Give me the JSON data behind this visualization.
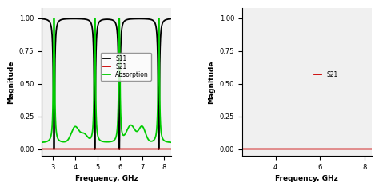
{
  "left_xlim": [
    2.5,
    8.3
  ],
  "left_ylim": [
    -0.05,
    1.08
  ],
  "right_xlim": [
    2.5,
    8.3
  ],
  "right_ylim": [
    -0.05,
    1.08
  ],
  "xlabel": "Frequency, GHz",
  "ylabel": "Magnitude",
  "left_xticks": [
    3,
    4,
    5,
    6,
    7,
    8
  ],
  "left_yticks": [
    0.0,
    0.25,
    0.5,
    0.75,
    1.0
  ],
  "right_xticks": [
    4,
    6,
    8
  ],
  "right_yticks": [
    0.0,
    0.25,
    0.5,
    0.75,
    1.0
  ],
  "s11_color": "#000000",
  "s21_color": "#cc0000",
  "absorption_color": "#00cc00",
  "legend_left": [
    "S11",
    "S21",
    "Absorption"
  ],
  "legend_right": [
    "S21"
  ],
  "linewidth": 1.3,
  "resonances": [
    3.05,
    4.88,
    5.98,
    7.75
  ],
  "bw": 0.065,
  "bg_color": "#f0f0f0"
}
